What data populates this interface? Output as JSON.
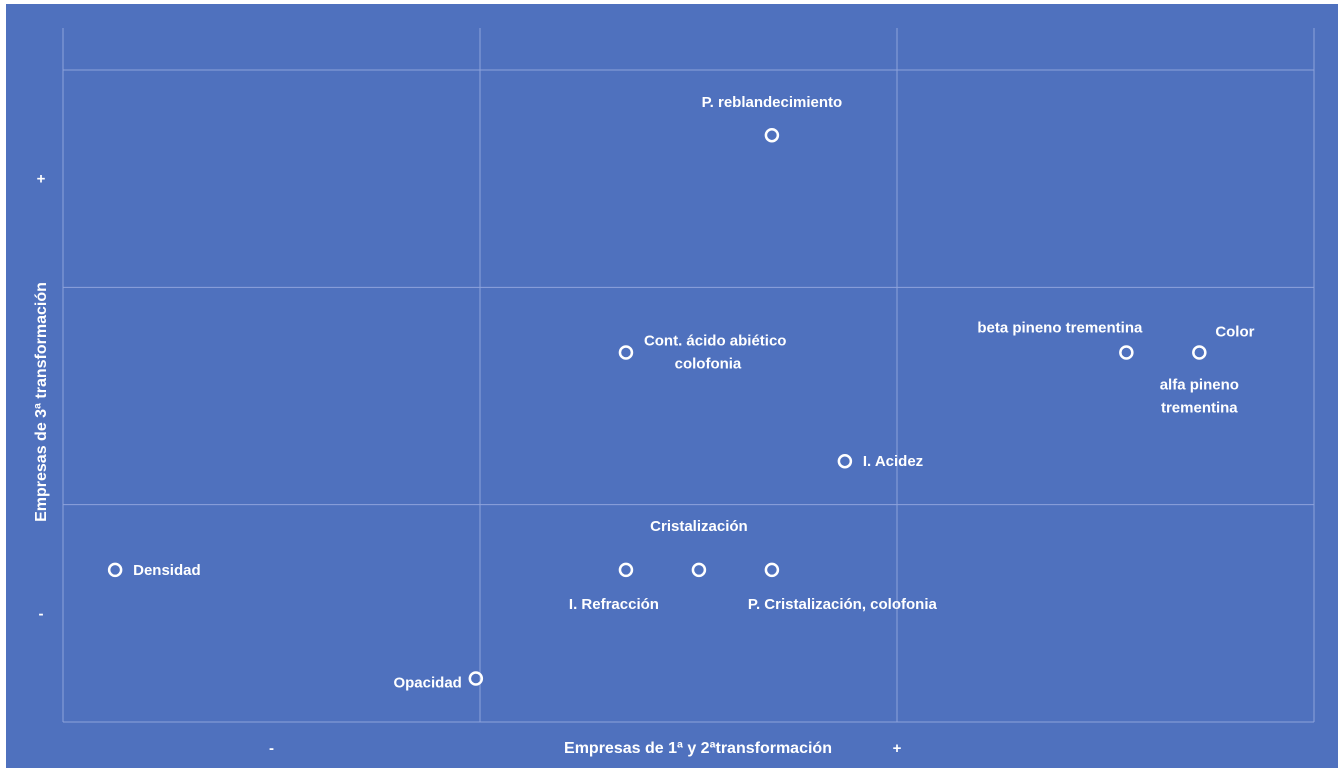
{
  "chart_data": {
    "type": "scatter",
    "title": "",
    "xlabel": "Empresas de 1ª y 2ªtransformación",
    "ylabel": "Empresas de 3ª transformación",
    "xlim": [
      0,
      6
    ],
    "ylim": [
      0,
      6
    ],
    "grid": true,
    "x_ticks": [
      {
        "value": 1,
        "label": "-"
      },
      {
        "value": 4,
        "label": "+"
      }
    ],
    "y_ticks": [
      {
        "value": 1,
        "label": "-"
      },
      {
        "value": 5,
        "label": "+"
      }
    ],
    "points": [
      {
        "name": "P. reblandecimiento",
        "x": 3.4,
        "y": 5.4
      },
      {
        "name": "Cont. ácido abiético colofonia",
        "x": 2.7,
        "y": 3.4
      },
      {
        "name": "beta pineno trementina",
        "x": 5.1,
        "y": 3.4
      },
      {
        "name": "Color",
        "x": 5.45,
        "y": 3.4
      },
      {
        "name": "alfa pineno trementina",
        "x": 5.45,
        "y": 3.4
      },
      {
        "name": "I. Acidez",
        "x": 3.75,
        "y": 2.4
      },
      {
        "name": "Cristalización",
        "x": 3.05,
        "y": 1.4
      },
      {
        "name": "I. Refracción",
        "x": 2.7,
        "y": 1.4
      },
      {
        "name": "P. Cristalización, colofonia",
        "x": 3.4,
        "y": 1.4
      },
      {
        "name": "Densidad",
        "x": 0.25,
        "y": 1.4
      },
      {
        "name": "Opacidad",
        "x": 1.98,
        "y": 0.4
      }
    ]
  }
}
